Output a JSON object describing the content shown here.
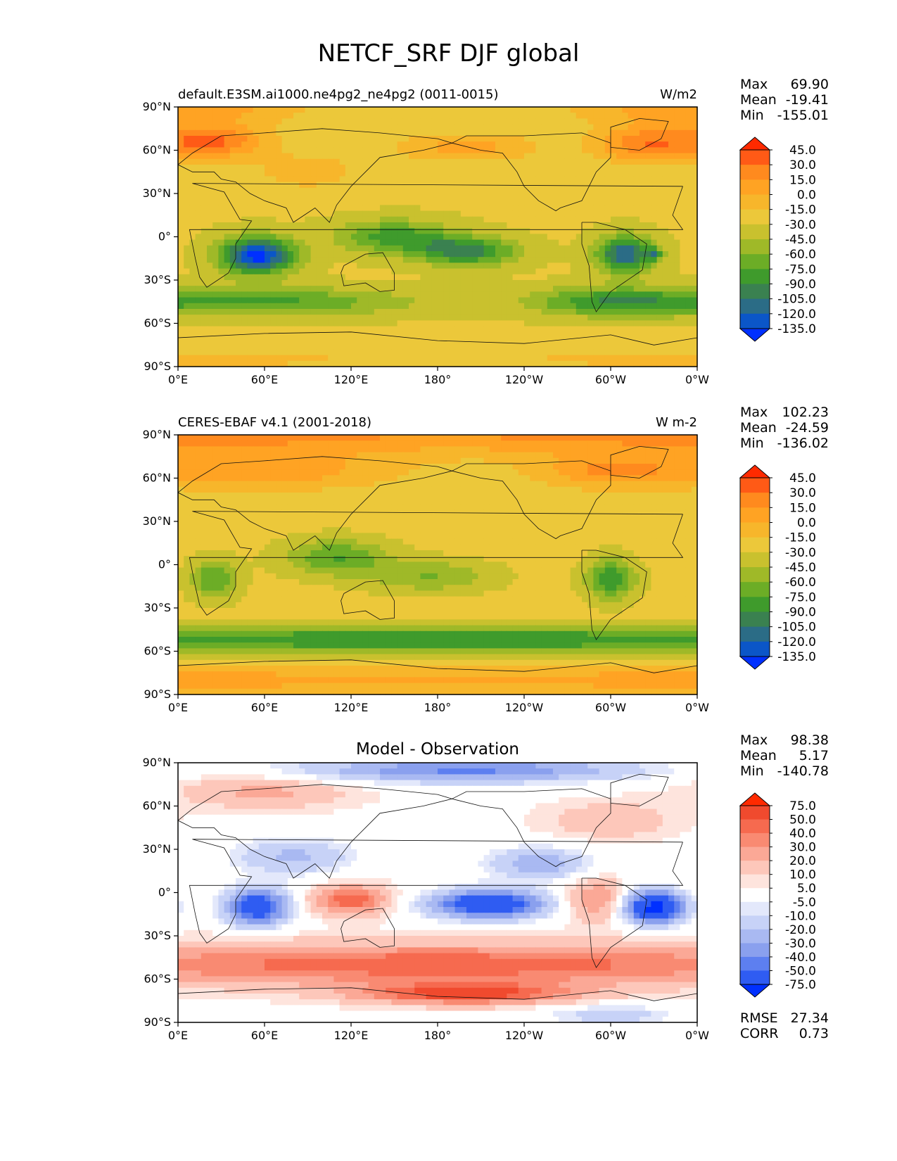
{
  "title": "NETCF_SRF DJF global",
  "chart_data": [
    {
      "type": "heatmap",
      "panel_title": "default.E3SM.ai1000.ne4pg2_ne4pg2 (0011-0015)",
      "units": "W/m2",
      "stats": {
        "Max": "69.90",
        "Mean": "-19.41",
        "Min": "-155.01"
      },
      "xticks": [
        "0°E",
        "60°E",
        "120°E",
        "180°",
        "120°W",
        "60°W",
        "0°W"
      ],
      "yticks": [
        "90°N",
        "60°N",
        "30°N",
        "0°",
        "30°S",
        "60°S",
        "90°S"
      ],
      "xlim": [
        0,
        360
      ],
      "ylim": [
        -90,
        90
      ],
      "colorbar_levels": [
        "45.0",
        "30.0",
        "15.0",
        "0.0",
        "-15.0",
        "-30.0",
        "-45.0",
        "-60.0",
        "-75.0",
        "-90.0",
        "-105.0",
        "-120.0",
        "-135.0"
      ],
      "colorbar_colors": [
        "#ff2a00",
        "#ff5a16",
        "#ff8a1e",
        "#ffa323",
        "#f7b62b",
        "#ecc83a",
        "#c9c12e",
        "#9fb928",
        "#6cad26",
        "#3f9b2c",
        "#3a8150",
        "#2b6c86",
        "#0b56c8",
        "#0030ff"
      ],
      "fields": [
        {
          "lat": 90,
          "lon": 0,
          "sigma_lat": 9,
          "sigma_lon": 60,
          "value": 40
        },
        {
          "lat": 66,
          "lon": 25,
          "sigma_lat": 8,
          "sigma_lon": 25,
          "value": 60
        },
        {
          "lat": 64,
          "lon": 325,
          "sigma_lat": 9,
          "sigma_lon": 25,
          "value": 55
        },
        {
          "lat": 62,
          "lon": 200,
          "sigma_lat": 7,
          "sigma_lon": 35,
          "value": 35
        },
        {
          "lat": 45,
          "lon": 90,
          "sigma_lat": 10,
          "sigma_lon": 30,
          "value": 20
        },
        {
          "lat": -13,
          "lon": 55,
          "sigma_lat": 9,
          "sigma_lon": 18,
          "value": -115
        },
        {
          "lat": -10,
          "lon": 200,
          "sigma_lat": 7,
          "sigma_lon": 25,
          "value": -70
        },
        {
          "lat": 0,
          "lon": 150,
          "sigma_lat": 8,
          "sigma_lon": 28,
          "value": -55
        },
        {
          "lat": -12,
          "lon": 310,
          "sigma_lat": 9,
          "sigma_lon": 14,
          "value": -90
        },
        {
          "lat": -12,
          "lon": 330,
          "sigma_lat": 3,
          "sigma_lon": 4,
          "value": -45
        },
        {
          "lat": -45,
          "lon": 60,
          "sigma_lat": 7,
          "sigma_lon": 70,
          "value": -50
        },
        {
          "lat": -45,
          "lon": 300,
          "sigma_lat": 7,
          "sigma_lon": 40,
          "value": -55
        },
        {
          "lat": -85,
          "lon": 0,
          "sigma_lat": 8,
          "sigma_lon": 200,
          "value": 15
        }
      ],
      "background_value": -28
    },
    {
      "type": "heatmap",
      "panel_title": "CERES-EBAF v4.1 (2001-2018)",
      "units": "W m-2",
      "stats": {
        "Max": "102.23",
        "Mean": "-24.59",
        "Min": "-136.02"
      },
      "xticks": [
        "0°E",
        "60°E",
        "120°E",
        "180°",
        "120°W",
        "60°W",
        "0°W"
      ],
      "yticks": [
        "90°N",
        "60°N",
        "30°N",
        "0°",
        "30°S",
        "60°S",
        "90°S"
      ],
      "xlim": [
        0,
        360
      ],
      "ylim": [
        -90,
        90
      ],
      "colorbar_levels": [
        "45.0",
        "30.0",
        "15.0",
        "0.0",
        "-15.0",
        "-30.0",
        "-45.0",
        "-60.0",
        "-75.0",
        "-90.0",
        "-105.0",
        "-120.0",
        "-135.0"
      ],
      "colorbar_colors": [
        "#ff2a00",
        "#ff5a16",
        "#ff8a1e",
        "#ffa323",
        "#f7b62b",
        "#ecc83a",
        "#c9c12e",
        "#9fb928",
        "#6cad26",
        "#3f9b2c",
        "#3a8150",
        "#2b6c86",
        "#0b56c8",
        "#0030ff"
      ],
      "fields": [
        {
          "lat": 90,
          "lon": 0,
          "sigma_lat": 10,
          "sigma_lon": 300,
          "value": 45
        },
        {
          "lat": 65,
          "lon": 60,
          "sigma_lat": 9,
          "sigma_lon": 60,
          "value": 35
        },
        {
          "lat": 65,
          "lon": 300,
          "sigma_lat": 8,
          "sigma_lon": 35,
          "value": 40
        },
        {
          "lat": 5,
          "lon": 110,
          "sigma_lat": 9,
          "sigma_lon": 25,
          "value": -50
        },
        {
          "lat": -10,
          "lon": 300,
          "sigma_lat": 10,
          "sigma_lon": 12,
          "value": -65
        },
        {
          "lat": -10,
          "lon": 25,
          "sigma_lat": 10,
          "sigma_lon": 12,
          "value": -50
        },
        {
          "lat": -8,
          "lon": 175,
          "sigma_lat": 8,
          "sigma_lon": 30,
          "value": -35
        },
        {
          "lat": -52,
          "lon": 180,
          "sigma_lat": 6,
          "sigma_lon": 360,
          "value": -65
        },
        {
          "lat": -80,
          "lon": 0,
          "sigma_lat": 7,
          "sigma_lon": 360,
          "value": 30
        }
      ],
      "background_value": -25
    },
    {
      "type": "heatmap",
      "panel_title": "Model - Observation",
      "units": "",
      "stats": {
        "Max": "98.38",
        "Mean": "5.17",
        "Min": "-140.78"
      },
      "extra_stats": {
        "RMSE": "27.34",
        "CORR": "0.73"
      },
      "xticks": [
        "0°E",
        "60°E",
        "120°E",
        "180°",
        "120°W",
        "60°W",
        "0°W"
      ],
      "yticks": [
        "90°N",
        "60°N",
        "30°N",
        "0°",
        "30°S",
        "60°S",
        "90°S"
      ],
      "xlim": [
        0,
        360
      ],
      "ylim": [
        -90,
        90
      ],
      "colorbar_levels": [
        "75.0",
        "50.0",
        "40.0",
        "30.0",
        "20.0",
        "10.0",
        "5.0",
        "-5.0",
        "-10.0",
        "-20.0",
        "-30.0",
        "-40.0",
        "-50.0",
        "-75.0"
      ],
      "colorbar_colors": [
        "#ff2a00",
        "#f04a2e",
        "#f66a4f",
        "#f98a72",
        "#fba896",
        "#fdc7ba",
        "#fee4dd",
        "#ffffff",
        "#e3e8fb",
        "#c7d2f7",
        "#a9b9f2",
        "#8aa0ee",
        "#5d7ff0",
        "#2f5cf2",
        "#0030ff"
      ],
      "fields": [
        {
          "lat": 85,
          "lon": 200,
          "sigma_lat": 6,
          "sigma_lon": 80,
          "value": -45
        },
        {
          "lat": 70,
          "lon": 60,
          "sigma_lat": 8,
          "sigma_lon": 40,
          "value": 20
        },
        {
          "lat": 50,
          "lon": 300,
          "sigma_lat": 9,
          "sigma_lon": 30,
          "value": 15
        },
        {
          "lat": 25,
          "lon": 80,
          "sigma_lat": 9,
          "sigma_lon": 30,
          "value": -25
        },
        {
          "lat": 20,
          "lon": 250,
          "sigma_lat": 8,
          "sigma_lon": 25,
          "value": -30
        },
        {
          "lat": -10,
          "lon": 55,
          "sigma_lat": 9,
          "sigma_lon": 15,
          "value": -70
        },
        {
          "lat": -8,
          "lon": 215,
          "sigma_lat": 7,
          "sigma_lon": 28,
          "value": -75
        },
        {
          "lat": -10,
          "lon": 330,
          "sigma_lat": 8,
          "sigma_lon": 15,
          "value": -85
        },
        {
          "lat": -5,
          "lon": 120,
          "sigma_lat": 7,
          "sigma_lon": 18,
          "value": 45
        },
        {
          "lat": -5,
          "lon": 290,
          "sigma_lat": 10,
          "sigma_lon": 15,
          "value": 30
        },
        {
          "lat": -50,
          "lon": 180,
          "sigma_lat": 10,
          "sigma_lon": 200,
          "value": 45
        },
        {
          "lat": -70,
          "lon": 200,
          "sigma_lat": 5,
          "sigma_lon": 50,
          "value": 55
        },
        {
          "lat": -85,
          "lon": 300,
          "sigma_lat": 5,
          "sigma_lon": 30,
          "value": -20
        }
      ],
      "background_value": 3
    }
  ]
}
